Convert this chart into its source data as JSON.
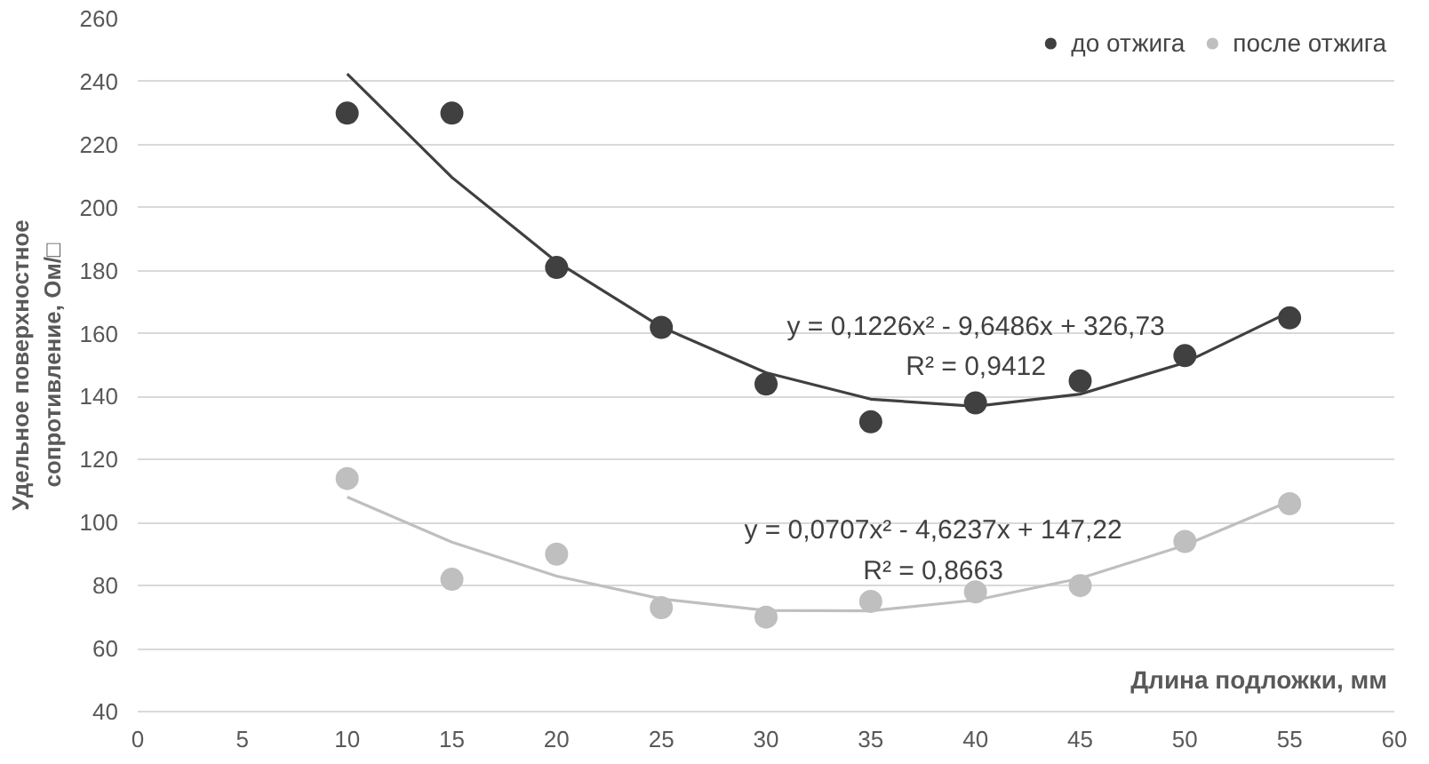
{
  "chart_data": {
    "type": "scatter",
    "ylabel": "Удельное поверхностное\nсопротивление, Ом/□",
    "xlabel": "Длина подложки, мм",
    "x": [
      10,
      15,
      20,
      25,
      30,
      35,
      40,
      45,
      50,
      55
    ],
    "series": [
      {
        "name": "до отжига",
        "color": "#404040",
        "values": [
          230,
          230,
          181,
          162,
          144,
          132,
          138,
          145,
          153,
          165
        ]
      },
      {
        "name": "после отжига",
        "color": "#bfbfbf",
        "values": [
          114,
          82,
          90,
          73,
          70,
          75,
          78,
          80,
          94,
          106
        ]
      },
      {
        "type": "line",
        "color": "#404040",
        "marker": "none",
        "x": [
          10,
          15,
          20,
          25,
          30,
          35,
          40,
          45,
          50,
          55
        ],
        "values": [
          242.5,
          209.6,
          182.8,
          162.1,
          147.6,
          139.2,
          136.9,
          140.8,
          150.8,
          166.9
        ]
      },
      {
        "type": "line",
        "color": "#bfbfbf",
        "marker": "none",
        "x": [
          10,
          15,
          20,
          25,
          30,
          35,
          40,
          45,
          50,
          55
        ],
        "values": [
          108.1,
          93.8,
          83.0,
          75.8,
          72.1,
          72.0,
          75.4,
          82.3,
          92.8,
          106.8
        ]
      }
    ],
    "annotations": [
      "y = 0,1226x² - 9,6486x + 326,73",
      "R² = 0,9412",
      "y = 0,0707x² - 4,6237x + 147,22",
      "R² = 0,8663"
    ],
    "xlim": [
      0,
      60
    ],
    "xticks": [
      0,
      5,
      10,
      15,
      20,
      25,
      30,
      35,
      40,
      45,
      50,
      55,
      60
    ],
    "ylim": [
      40,
      260
    ],
    "yticks": [
      40,
      60,
      80,
      100,
      120,
      140,
      160,
      180,
      200,
      220,
      240,
      260
    ],
    "grid": "y",
    "legend": "top right",
    "marker": "circle"
  }
}
